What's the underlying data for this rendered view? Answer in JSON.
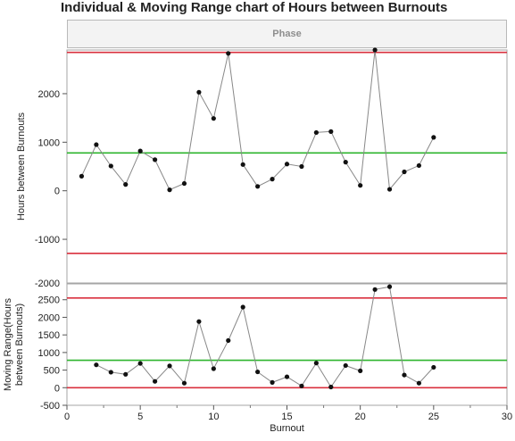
{
  "title": "Individual & Moving Range chart of Hours between Burnouts",
  "phase_label": "Phase",
  "colors": {
    "data_line": "#888888",
    "point": "#111111",
    "center_line": "#2db52d",
    "limit_line": "#d9303e",
    "frame": "#a6a6a6"
  },
  "chart_data": [
    {
      "type": "line",
      "name": "Individual",
      "ylabel": "Hours between Burnouts",
      "xlabel": "Burnout",
      "xlim": [
        0,
        30
      ],
      "ylim": [
        -1900,
        2900
      ],
      "yticks": [
        -1000,
        0,
        1000,
        2000
      ],
      "grid": false,
      "x": [
        1,
        2,
        3,
        4,
        5,
        6,
        7,
        8,
        9,
        10,
        11,
        12,
        13,
        14,
        15,
        16,
        17,
        18,
        19,
        20,
        21,
        22,
        23,
        24,
        25
      ],
      "values": [
        300,
        950,
        510,
        130,
        820,
        640,
        20,
        150,
        2030,
        1490,
        2830,
        540,
        90,
        240,
        550,
        500,
        1200,
        1220,
        590,
        110,
        2900,
        30,
        390,
        520,
        1100
      ],
      "center_line": 780,
      "upper_limit": 2850,
      "lower_limit": -1290
    },
    {
      "type": "line",
      "name": "Moving Range",
      "ylabel": "Moving Range(Hours between Burnouts)",
      "xlabel": "Burnout",
      "xlim": [
        0,
        30
      ],
      "ylim": [
        -500,
        2950
      ],
      "yticks": [
        -500,
        0,
        500,
        1000,
        1500,
        2000,
        2500
      ],
      "grid": false,
      "x": [
        2,
        3,
        4,
        5,
        6,
        7,
        8,
        9,
        10,
        11,
        12,
        13,
        14,
        15,
        16,
        17,
        18,
        19,
        20,
        21,
        22,
        23,
        24,
        25
      ],
      "values": [
        650,
        440,
        380,
        690,
        180,
        620,
        130,
        1880,
        540,
        1340,
        2290,
        450,
        150,
        310,
        50,
        700,
        20,
        630,
        480,
        2790,
        2870,
        360,
        130,
        580
      ],
      "center_line": 780,
      "upper_limit": 2550,
      "lower_limit": 0
    }
  ],
  "x_axis": {
    "label": "Burnout",
    "ticks": [
      0,
      5,
      10,
      15,
      20,
      25,
      30
    ]
  },
  "divider_tick_label": "-2000"
}
